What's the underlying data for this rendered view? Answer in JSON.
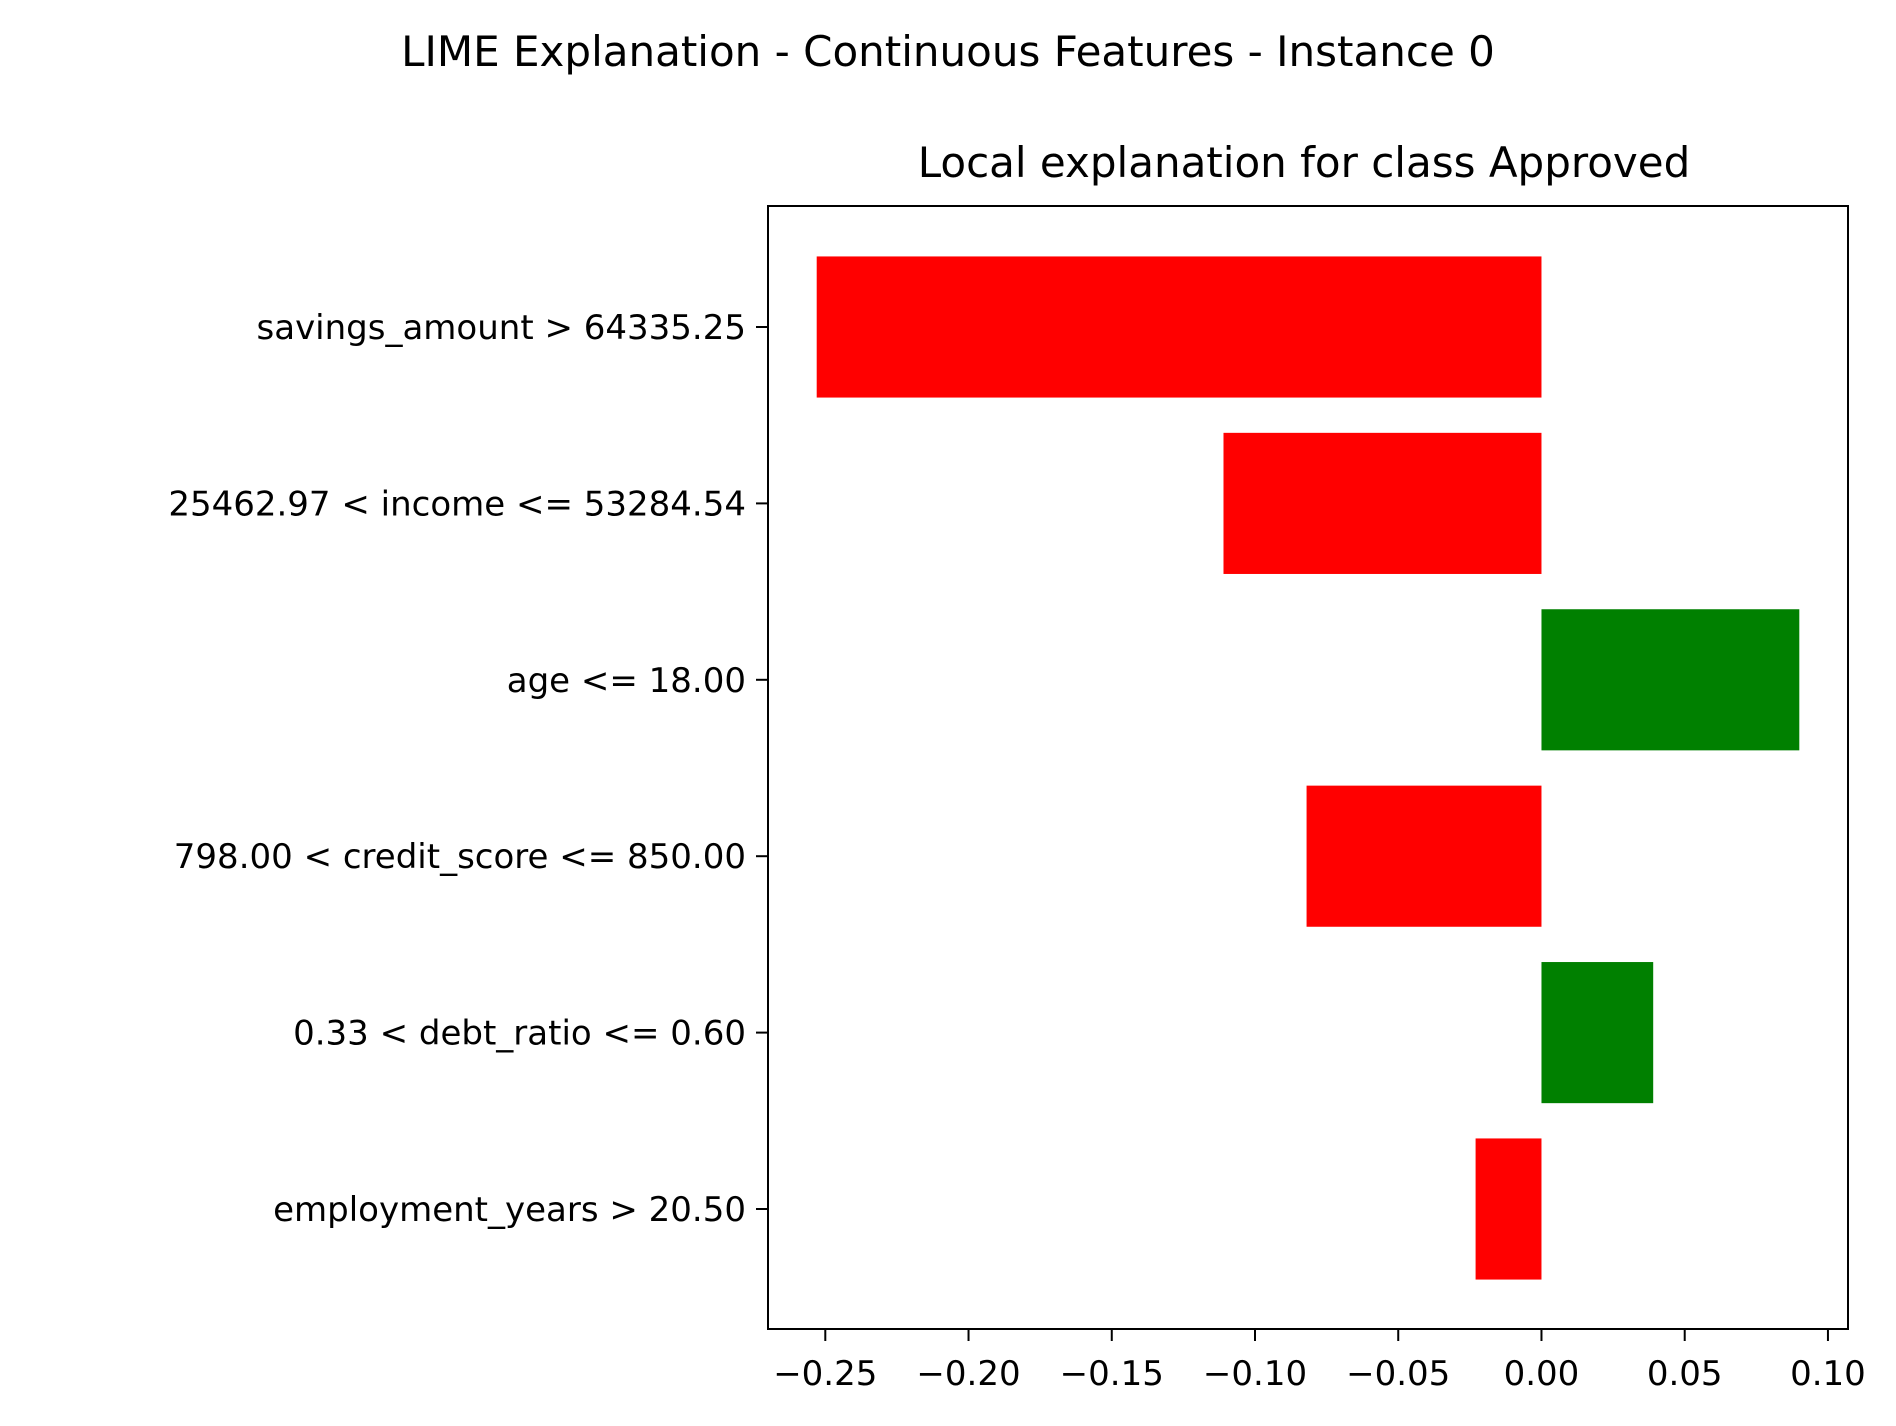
{
  "chart_data": {
    "type": "bar",
    "orientation": "horizontal",
    "suptitle": "LIME Explanation - Continuous Features - Instance 0",
    "title": "Local explanation for class Approved",
    "xlabel": "",
    "ylabel": "",
    "xlim": [
      -0.27,
      0.107
    ],
    "xticks": [
      -0.25,
      -0.2,
      -0.15,
      -0.1,
      -0.05,
      0.0,
      0.05,
      0.1
    ],
    "xtick_labels": [
      "−0.25",
      "−0.20",
      "−0.15",
      "−0.10",
      "−0.05",
      "0.00",
      "0.05",
      "0.10"
    ],
    "categories": [
      "savings_amount > 64335.25",
      "25462.97 < income <= 53284.54",
      "age <= 18.00",
      "798.00 < credit_score <= 850.00",
      "0.33 < debt_ratio <= 0.60",
      "employment_years > 20.50"
    ],
    "values": [
      -0.253,
      -0.111,
      0.09,
      -0.082,
      0.039,
      -0.023
    ],
    "colors": {
      "positive": "#008000",
      "negative": "#ff0000"
    },
    "grid": false,
    "legend": "none"
  }
}
